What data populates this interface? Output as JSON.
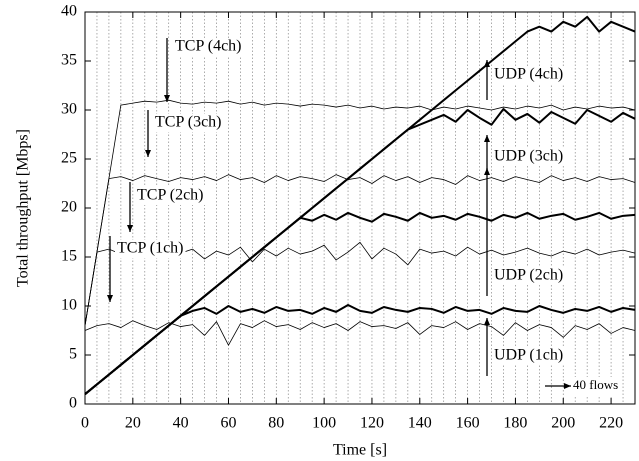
{
  "chart_data": {
    "type": "line",
    "xlabel": "Time [s]",
    "ylabel": "Total throughput [Mbps]",
    "xlim": [
      0,
      230
    ],
    "ylim": [
      0,
      40
    ],
    "xticks": [
      0,
      20,
      40,
      60,
      80,
      100,
      120,
      140,
      160,
      180,
      200,
      220
    ],
    "yticks": [
      0,
      5,
      10,
      15,
      20,
      25,
      30,
      35,
      40
    ],
    "xgrid": [
      5,
      10,
      15,
      20,
      25,
      30,
      35,
      40,
      45,
      50,
      55,
      60,
      65,
      70,
      75,
      80,
      85,
      90,
      95,
      100,
      105,
      110,
      115,
      120,
      125,
      130,
      135,
      140,
      145,
      150,
      155,
      160,
      165,
      170,
      175,
      180,
      185,
      190,
      195,
      200,
      205,
      210,
      215,
      220,
      225
    ],
    "x": [
      0,
      5,
      10,
      15,
      20,
      25,
      30,
      35,
      40,
      45,
      50,
      55,
      60,
      65,
      70,
      75,
      80,
      85,
      90,
      95,
      100,
      105,
      110,
      115,
      120,
      125,
      130,
      135,
      140,
      145,
      150,
      155,
      160,
      165,
      170,
      175,
      180,
      185,
      190,
      195,
      200,
      205,
      210,
      215,
      220,
      225,
      230
    ],
    "series": [
      {
        "color": "#000000",
        "width": 0.8,
        "values": [
          7.5,
          8,
          8.2,
          7.8,
          8.5,
          8,
          7.6,
          8.3,
          7.9,
          8.1,
          7,
          8.4,
          6,
          8.2,
          7.8,
          8.5,
          7.9,
          8.1,
          7.6,
          8.3,
          7.8,
          8.2,
          7.5,
          8.4,
          7.9,
          8,
          7.7,
          8.3,
          7.1,
          8,
          7.8,
          8.4,
          7.6,
          8.2,
          7.9,
          7,
          8.3,
          7.5,
          8.1,
          7.8,
          6.8,
          8,
          7.6,
          8.2,
          7.2,
          7.8,
          7.5
        ]
      },
      {
        "color": "#000000",
        "width": 0.8,
        "values": [
          8,
          15.5,
          15.8,
          15.3,
          15.6,
          15.9,
          15.2,
          15.7,
          15.4,
          15.8,
          14.8,
          15.6,
          15.2,
          16,
          14.5,
          15.8,
          15.1,
          15.9,
          15.3,
          15.6,
          16.2,
          14.7,
          15.5,
          16.5,
          14.8,
          15.9,
          15.3,
          14.2,
          15.8,
          15.4,
          15.6,
          15.1,
          16,
          15.3,
          15.7,
          15.2,
          15.5,
          15.9,
          15.4,
          15.1,
          15.6,
          15.3,
          15.8,
          15.2,
          15.5,
          15.7,
          15.4
        ]
      },
      {
        "color": "#000000",
        "width": 0.8,
        "values": [
          8,
          15.5,
          23,
          23.2,
          22.8,
          23.3,
          23,
          22.7,
          23.1,
          22.9,
          23.2,
          22.8,
          23.4,
          22.9,
          23.1,
          22.6,
          23.3,
          22.8,
          23.2,
          23,
          22.7,
          23.4,
          22.9,
          23.1,
          22.5,
          23.3,
          22.8,
          23.2,
          22.6,
          23.1,
          22.9,
          22.4,
          23.3,
          22.8,
          23.1,
          22.7,
          23.2,
          22.9,
          22.6,
          23.3,
          22.8,
          23.1,
          22.7,
          23.2,
          22.9,
          23,
          22.6
        ]
      },
      {
        "color": "#000000",
        "width": 0.8,
        "values": [
          8,
          15.5,
          23,
          30.5,
          30.7,
          30.9,
          30.8,
          31,
          30.7,
          30.6,
          30.8,
          30.7,
          30.9,
          30.6,
          30.8,
          30.5,
          30.7,
          30.6,
          30.4,
          30.6,
          30.5,
          30.3,
          30.5,
          30.2,
          30.4,
          30.1,
          30.3,
          30.2,
          30.4,
          30,
          30.3,
          30.1,
          30.4,
          30.2,
          30,
          30.3,
          30.1,
          30.4,
          30.2,
          30.5,
          30,
          30.3,
          30.1,
          30.4,
          30.2,
          30.3,
          30
        ]
      },
      {
        "color": "#000000",
        "width": 2,
        "values": [
          1,
          2,
          3,
          4,
          5,
          6,
          7,
          8,
          9,
          9.5,
          9.8,
          9.2,
          10,
          9.4,
          9.7,
          9.3,
          9.9,
          9.5,
          9.6,
          9.2,
          9.8,
          9.4,
          10.1,
          9.5,
          9.3,
          9.9,
          9.6,
          9.4,
          9.8,
          9.7,
          9.3,
          9.9,
          9.5,
          9.6,
          9.2,
          9.8,
          9.5,
          9.4,
          10,
          9.6,
          9.3,
          9.7,
          9.5,
          9.9,
          9.4,
          9.8,
          9.6
        ]
      },
      {
        "color": "#000000",
        "width": 2,
        "values": [
          1,
          2,
          3,
          4,
          5,
          6,
          7,
          8,
          9,
          10,
          11,
          12,
          13,
          14,
          15,
          16,
          17,
          18,
          19,
          18.7,
          19.3,
          18.8,
          19.5,
          19,
          18.6,
          19.4,
          19.1,
          18.7,
          19.5,
          19,
          19.2,
          18.8,
          19.4,
          19.1,
          18.7,
          19.3,
          19,
          19.5,
          18.9,
          19.2,
          19.4,
          18.8,
          19.1,
          19.5,
          18.9,
          19.2,
          19.3
        ]
      },
      {
        "color": "#000000",
        "width": 2,
        "values": [
          1,
          2,
          3,
          4,
          5,
          6,
          7,
          8,
          9,
          10,
          11,
          12,
          13,
          14,
          15,
          16,
          17,
          18,
          19,
          20,
          21,
          22,
          23,
          24,
          25,
          26,
          27,
          28,
          28.5,
          29,
          29.5,
          28.8,
          30,
          29.2,
          28.5,
          30.1,
          29,
          29.6,
          28.7,
          29.8,
          29.2,
          28.6,
          30,
          29.4,
          28.8,
          29.7,
          29.1
        ]
      },
      {
        "color": "#000000",
        "width": 2,
        "values": [
          1,
          2,
          3,
          4,
          5,
          6,
          7,
          8,
          9,
          10,
          11,
          12,
          13,
          14,
          15,
          16,
          17,
          18,
          19,
          20,
          21,
          22,
          23,
          24,
          25,
          26,
          27,
          28,
          29,
          30,
          31,
          32,
          33,
          34,
          35,
          36,
          37,
          38,
          38.5,
          38,
          39,
          38.5,
          39.5,
          38,
          39,
          38.5,
          38
        ]
      }
    ],
    "annotations": [
      "TCP (4ch)",
      "TCP (3ch)",
      "TCP (2ch)",
      "TCP (1ch)",
      "UDP (4ch)",
      "UDP (3ch)",
      "UDP (2ch)",
      "UDP (1ch)",
      "40 flows"
    ]
  }
}
